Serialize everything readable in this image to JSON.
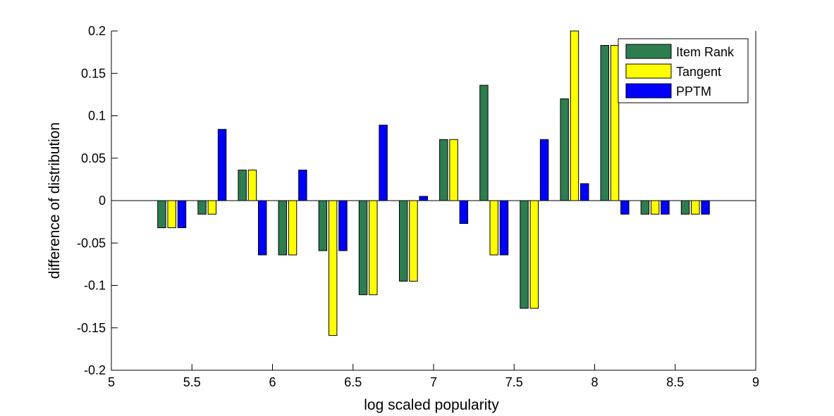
{
  "chart_data": {
    "type": "bar",
    "xlabel": "log scaled popularity",
    "ylabel": "difference of distribution",
    "xlim": [
      5,
      9
    ],
    "ylim": [
      -0.2,
      0.2
    ],
    "x_ticks": [
      "5",
      "5.5",
      "6",
      "6.5",
      "7",
      "7.5",
      "8",
      "8.5",
      "9"
    ],
    "y_ticks": [
      "-0.2",
      "-0.15",
      "-0.1",
      "-0.05",
      "0",
      "0.05",
      "0.1",
      "0.15",
      "0.2"
    ],
    "legend_position": "top-right",
    "grid": false,
    "x": [
      5.375,
      5.625,
      5.875,
      6.125,
      6.375,
      6.625,
      6.875,
      7.125,
      7.375,
      7.625,
      7.875,
      8.125,
      8.375,
      8.625
    ],
    "series": [
      {
        "name": "Item Rank",
        "color": "#2e7d4f",
        "values": [
          -0.032,
          -0.016,
          0.036,
          -0.064,
          -0.059,
          -0.111,
          -0.095,
          0.072,
          0.136,
          -0.127,
          0.12,
          0.183,
          -0.016,
          -0.016
        ]
      },
      {
        "name": "Tangent",
        "color": "#ffff00",
        "values": [
          -0.032,
          -0.016,
          0.036,
          -0.064,
          -0.159,
          -0.111,
          -0.095,
          0.072,
          -0.064,
          -0.127,
          0.2,
          0.183,
          -0.016,
          -0.016
        ]
      },
      {
        "name": "PPTM",
        "color": "#0000ff",
        "values": [
          -0.032,
          0.084,
          -0.064,
          0.036,
          -0.059,
          0.089,
          0.005,
          -0.027,
          -0.064,
          0.072,
          0.02,
          -0.016,
          -0.016,
          -0.016
        ]
      }
    ]
  }
}
